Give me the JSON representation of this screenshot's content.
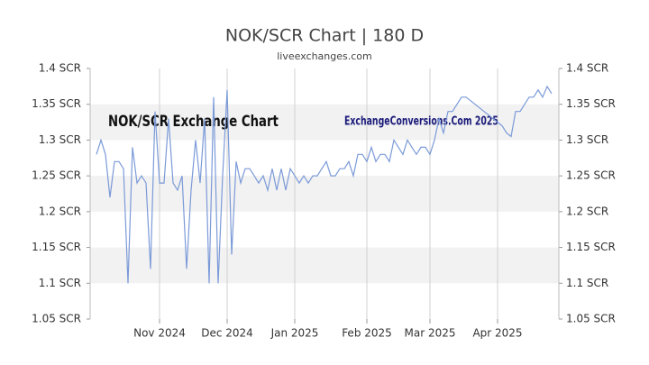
{
  "chart_data": {
    "type": "line",
    "title": "NOK/SCR Chart | 180 D",
    "subtitle": "liveexchanges.com",
    "watermarks": [
      "NOK/SCR Exchange Chart",
      "ExchangeConversions.Com 2025"
    ],
    "categories": [
      null,
      null,
      null,
      null,
      null,
      null,
      null,
      null,
      null,
      null,
      null,
      null,
      null,
      null,
      "Nov 2024",
      null,
      null,
      null,
      null,
      null,
      null,
      null,
      null,
      null,
      null,
      null,
      null,
      null,
      null,
      "Dec 2024",
      null,
      null,
      null,
      null,
      null,
      null,
      null,
      null,
      null,
      null,
      null,
      null,
      null,
      null,
      "Jan 2025",
      null,
      null,
      null,
      null,
      null,
      null,
      null,
      null,
      null,
      null,
      null,
      null,
      null,
      null,
      null,
      "Feb 2025",
      null,
      null,
      null,
      null,
      null,
      null,
      null,
      null,
      null,
      null,
      null,
      null,
      null,
      "Mar 2025",
      null,
      null,
      null,
      null,
      null,
      null,
      null,
      null,
      null,
      null,
      null,
      null,
      null,
      null,
      "Apr 2025",
      null,
      null,
      null,
      null,
      null,
      null,
      null,
      null,
      null,
      null,
      null,
      null
    ],
    "values": [
      1.28,
      1.3,
      1.28,
      1.22,
      1.27,
      1.27,
      1.26,
      1.1,
      1.29,
      1.24,
      1.25,
      1.24,
      1.12,
      1.34,
      1.24,
      1.24,
      1.33,
      1.24,
      1.23,
      1.25,
      1.12,
      1.23,
      1.3,
      1.24,
      1.33,
      1.1,
      1.36,
      1.1,
      1.25,
      1.37,
      1.14,
      1.27,
      1.24,
      1.26,
      1.26,
      1.25,
      1.24,
      1.25,
      1.23,
      1.26,
      1.23,
      1.26,
      1.23,
      1.26,
      1.25,
      1.24,
      1.25,
      1.24,
      1.25,
      1.25,
      1.26,
      1.27,
      1.25,
      1.25,
      1.26,
      1.26,
      1.27,
      1.25,
      1.28,
      1.28,
      1.27,
      1.29,
      1.27,
      1.28,
      1.28,
      1.27,
      1.3,
      1.29,
      1.28,
      1.3,
      1.29,
      1.28,
      1.29,
      1.29,
      1.28,
      1.3,
      1.33,
      1.31,
      1.34,
      1.34,
      1.35,
      1.36,
      1.36,
      1.355,
      1.35,
      1.345,
      1.34,
      1.335,
      1.33,
      1.325,
      1.32,
      1.31,
      1.305,
      1.34,
      1.34,
      1.35,
      1.36,
      1.36,
      1.37,
      1.36,
      1.375,
      1.365
    ],
    "color": "#7b9ad8",
    "ylim": [
      1.05,
      1.4
    ],
    "yticks": [
      {
        "value": 1.05,
        "label": "1.05 SCR"
      },
      {
        "value": 1.1,
        "label": "1.1 SCR"
      },
      {
        "value": 1.15,
        "label": "1.15 SCR"
      },
      {
        "value": 1.2,
        "label": "1.2 SCR"
      },
      {
        "value": 1.25,
        "label": "1.25 SCR"
      },
      {
        "value": 1.3,
        "label": "1.3 SCR"
      },
      {
        "value": 1.35,
        "label": "1.35 SCR"
      },
      {
        "value": 1.4,
        "label": "1.4 SCR"
      }
    ],
    "bands": true
  }
}
